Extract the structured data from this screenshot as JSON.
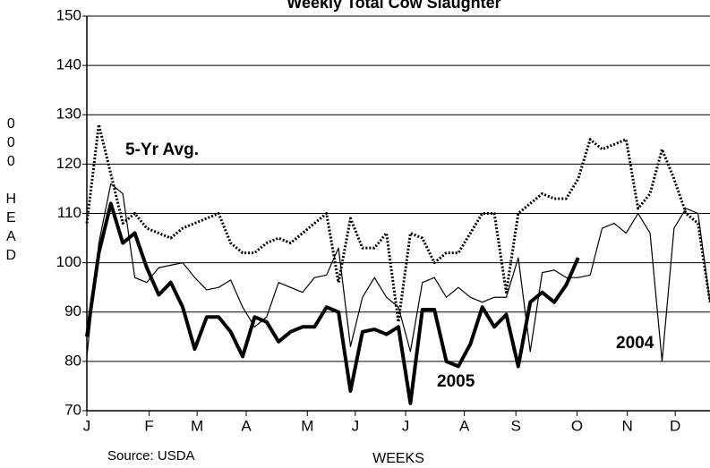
{
  "chart_data": {
    "type": "line",
    "title": "Weekly Total Cow Slaughter",
    "y_label": "000 HEAD",
    "x_label": "WEEKS",
    "source": "Source:  USDA",
    "x": [
      1,
      2,
      3,
      4,
      5,
      6,
      7,
      8,
      9,
      10,
      11,
      12,
      13,
      14,
      15,
      16,
      17,
      18,
      19,
      20,
      21,
      22,
      23,
      24,
      25,
      26,
      27,
      28,
      29,
      30,
      31,
      32,
      33,
      34,
      35,
      36,
      37,
      38,
      39,
      40,
      41,
      42,
      43,
      44,
      45,
      46,
      47,
      48,
      49,
      50,
      51,
      52,
      53
    ],
    "xlim": [
      1,
      53
    ],
    "xticks": [
      {
        "value": 1,
        "label": "J"
      },
      {
        "value": 6.2,
        "label": "F"
      },
      {
        "value": 10.2,
        "label": "M"
      },
      {
        "value": 14.3,
        "label": "A"
      },
      {
        "value": 19.4,
        "label": "M"
      },
      {
        "value": 23.4,
        "label": "J"
      },
      {
        "value": 27.6,
        "label": "J"
      },
      {
        "value": 32.5,
        "label": "A"
      },
      {
        "value": 36.8,
        "label": "S"
      },
      {
        "value": 41.9,
        "label": "O"
      },
      {
        "value": 46.1,
        "label": "N"
      },
      {
        "value": 50.1,
        "label": "D"
      }
    ],
    "ylim": [
      70,
      150
    ],
    "yticks": [
      70,
      80,
      90,
      100,
      110,
      120,
      130,
      140,
      150
    ],
    "grid": true,
    "series": [
      {
        "name": "5-Yr Avg.",
        "color": "#000000",
        "style": "dotted",
        "values": [
          108,
          128,
          118,
          108,
          110,
          107,
          106,
          105,
          107,
          108,
          109,
          110,
          104,
          102,
          102,
          104,
          105,
          104,
          106,
          108,
          110,
          96,
          109,
          103,
          103,
          106,
          88,
          106,
          105,
          100,
          102,
          102,
          106,
          110,
          110,
          94,
          110,
          112,
          114,
          113,
          113,
          117,
          125,
          123,
          124,
          125,
          111,
          114,
          123,
          117,
          110,
          108,
          92
        ]
      },
      {
        "name": "2004",
        "color": "#000000",
        "style": "thin",
        "values": [
          81,
          104,
          116,
          114,
          97,
          96,
          99,
          99.5,
          100,
          97,
          94.5,
          95,
          96.5,
          91,
          87,
          89,
          96,
          95,
          94,
          97,
          97.5,
          103,
          83,
          93,
          97,
          93,
          91,
          82,
          96,
          97,
          93,
          95,
          93,
          92,
          93,
          93,
          101,
          82,
          98,
          98.5,
          97,
          97,
          97.5,
          107,
          108,
          106,
          110,
          106,
          80,
          107,
          111,
          110,
          92
        ]
      },
      {
        "name": "2005",
        "color": "#000000",
        "style": "thick",
        "values": [
          85,
          102,
          112,
          104,
          106,
          99,
          93.5,
          96,
          91,
          82.5,
          89,
          89,
          86,
          81,
          89,
          88,
          84,
          86,
          87,
          87,
          91,
          90,
          74,
          86,
          86.5,
          85.5,
          87,
          71.5,
          90.5,
          90.5,
          80,
          79,
          83.5,
          91,
          87,
          89.5,
          79,
          92,
          94,
          92,
          95.5,
          101,
          null,
          null,
          null,
          null,
          null,
          null,
          null,
          null,
          null,
          null,
          null
        ]
      }
    ]
  }
}
